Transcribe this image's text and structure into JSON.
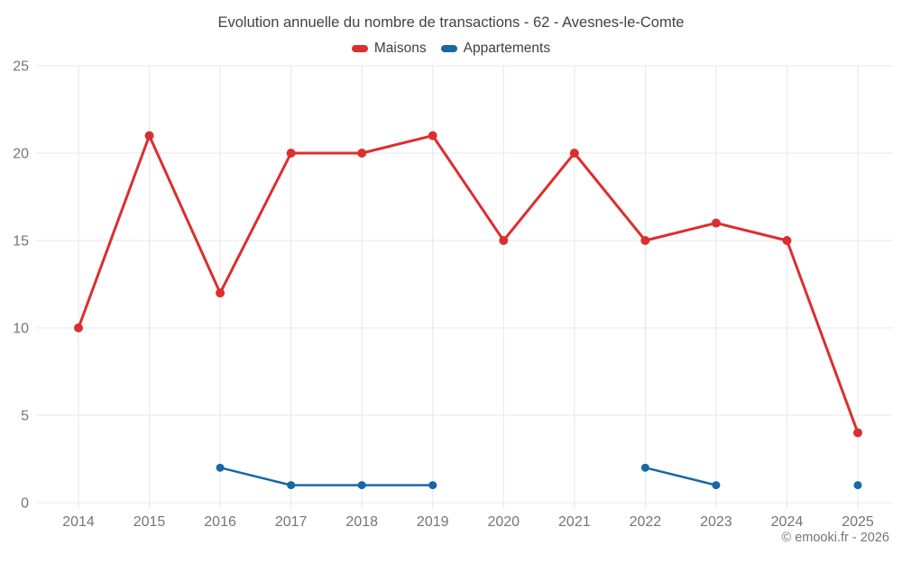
{
  "title": "Evolution annuelle du nombre de transactions - 62 - Avesnes-le-Comte",
  "legend": {
    "items": [
      {
        "label": "Maisons",
        "color": "#dc2e2e"
      },
      {
        "label": "Appartements",
        "color": "#1669a5"
      }
    ]
  },
  "copyright": "© emooki.fr - 2026",
  "colors": {
    "grid": "#e7e7e7",
    "axis_label": "#757575",
    "title": "#424242",
    "maisons": "#dc2e2e",
    "appartements": "#1669a5"
  },
  "chart_data": {
    "type": "line",
    "title": "Evolution annuelle du nombre de transactions - 62 - Avesnes-le-Comte",
    "categories": [
      "2014",
      "2015",
      "2016",
      "2017",
      "2018",
      "2019",
      "2020",
      "2021",
      "2022",
      "2023",
      "2024",
      "2025"
    ],
    "series": [
      {
        "name": "Maisons",
        "color": "#dc2e2e",
        "values": [
          10,
          21,
          12,
          20,
          20,
          21,
          15,
          20,
          15,
          16,
          15,
          4
        ]
      },
      {
        "name": "Appartements",
        "color": "#1669a5",
        "values": [
          null,
          null,
          2,
          1,
          1,
          1,
          null,
          null,
          2,
          1,
          null,
          1
        ]
      }
    ],
    "xlabel": "",
    "ylabel": "",
    "ylim": [
      0,
      25
    ],
    "yticks": [
      0,
      5,
      10,
      15,
      20,
      25
    ],
    "grid": true,
    "legend_position": "top"
  }
}
